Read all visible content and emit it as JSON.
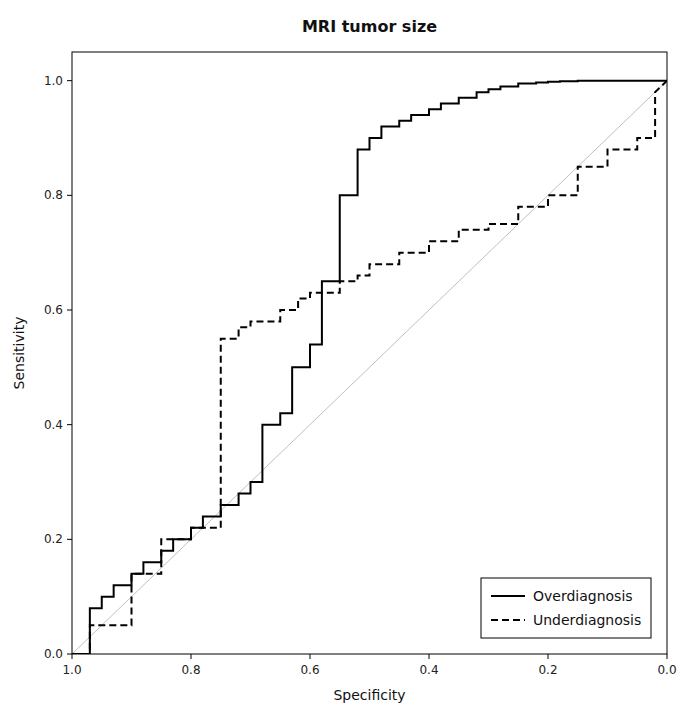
{
  "chart_data": {
    "type": "line",
    "title": "MRI tumor size",
    "xlabel": "Specificity",
    "ylabel": "Sensitivity",
    "xlim": [
      1.0,
      0.0
    ],
    "ylim": [
      0.0,
      1.05
    ],
    "xticks": [
      {
        "value": 1.0,
        "label": "1.0"
      },
      0.8,
      0.6,
      0.4,
      0.2,
      {
        "value": 0.0,
        "label": "0.0"
      }
    ],
    "yticks": [
      {
        "value": 0.0,
        "label": "0.0"
      },
      0.2,
      0.4,
      0.6,
      0.8,
      {
        "value": 1.0,
        "label": "1.0"
      }
    ],
    "grid": false,
    "legend": "lower right",
    "series": [
      {
        "color": "#c0c0c0",
        "line_style": "solid",
        "x": [
          1.0,
          0.0
        ],
        "values": [
          0.0,
          1.0
        ]
      },
      {
        "name": "Overdiagnosis",
        "color": "#000000",
        "line_style": "solid",
        "x": [
          1.0,
          0.97,
          0.97,
          0.95,
          0.95,
          0.93,
          0.93,
          0.9,
          0.9,
          0.88,
          0.88,
          0.85,
          0.85,
          0.83,
          0.83,
          0.8,
          0.8,
          0.78,
          0.78,
          0.75,
          0.75,
          0.72,
          0.72,
          0.7,
          0.7,
          0.68,
          0.68,
          0.65,
          0.65,
          0.63,
          0.63,
          0.6,
          0.6,
          0.58,
          0.58,
          0.55,
          0.55,
          0.52,
          0.52,
          0.5,
          0.5,
          0.48,
          0.48,
          0.45,
          0.45,
          0.43,
          0.43,
          0.4,
          0.4,
          0.38,
          0.38,
          0.35,
          0.35,
          0.32,
          0.32,
          0.3,
          0.3,
          0.28,
          0.28,
          0.25,
          0.25,
          0.22,
          0.22,
          0.2,
          0.2,
          0.18,
          0.18,
          0.15,
          0.15,
          0.12,
          0.12,
          0.1,
          0.1,
          0.08,
          0.08,
          0.05,
          0.05,
          0.03,
          0.03,
          0.0
        ],
        "values": [
          0.0,
          0.0,
          0.08,
          0.08,
          0.1,
          0.1,
          0.12,
          0.12,
          0.14,
          0.14,
          0.16,
          0.16,
          0.18,
          0.18,
          0.2,
          0.2,
          0.22,
          0.22,
          0.24,
          0.24,
          0.26,
          0.26,
          0.28,
          0.28,
          0.3,
          0.3,
          0.4,
          0.4,
          0.42,
          0.42,
          0.5,
          0.5,
          0.54,
          0.54,
          0.65,
          0.65,
          0.8,
          0.8,
          0.88,
          0.88,
          0.9,
          0.9,
          0.92,
          0.92,
          0.93,
          0.93,
          0.94,
          0.94,
          0.95,
          0.95,
          0.96,
          0.96,
          0.97,
          0.97,
          0.98,
          0.98,
          0.985,
          0.985,
          0.99,
          0.99,
          0.995,
          0.995,
          0.997,
          0.997,
          0.998,
          0.998,
          0.999,
          0.999,
          1.0,
          1.0,
          1.0,
          1.0,
          1.0,
          1.0,
          1.0,
          1.0,
          1.0,
          1.0,
          1.0,
          1.0
        ]
      },
      {
        "name": "Underdiagnosis",
        "color": "#000000",
        "line_style": "dashed",
        "x": [
          1.0,
          0.97,
          0.97,
          0.9,
          0.9,
          0.85,
          0.85,
          0.8,
          0.8,
          0.75,
          0.75,
          0.72,
          0.72,
          0.7,
          0.7,
          0.65,
          0.65,
          0.62,
          0.62,
          0.6,
          0.6,
          0.55,
          0.55,
          0.52,
          0.52,
          0.5,
          0.5,
          0.45,
          0.45,
          0.4,
          0.4,
          0.35,
          0.35,
          0.3,
          0.3,
          0.25,
          0.25,
          0.2,
          0.2,
          0.15,
          0.15,
          0.1,
          0.1,
          0.05,
          0.05,
          0.02,
          0.02,
          0.0
        ],
        "values": [
          0.0,
          0.0,
          0.05,
          0.05,
          0.14,
          0.14,
          0.2,
          0.2,
          0.22,
          0.22,
          0.55,
          0.55,
          0.57,
          0.57,
          0.58,
          0.58,
          0.6,
          0.6,
          0.62,
          0.62,
          0.63,
          0.63,
          0.65,
          0.65,
          0.66,
          0.66,
          0.68,
          0.68,
          0.7,
          0.7,
          0.72,
          0.72,
          0.74,
          0.74,
          0.75,
          0.75,
          0.78,
          0.78,
          0.8,
          0.8,
          0.85,
          0.85,
          0.88,
          0.88,
          0.9,
          0.9,
          0.98,
          1.0
        ]
      }
    ]
  }
}
